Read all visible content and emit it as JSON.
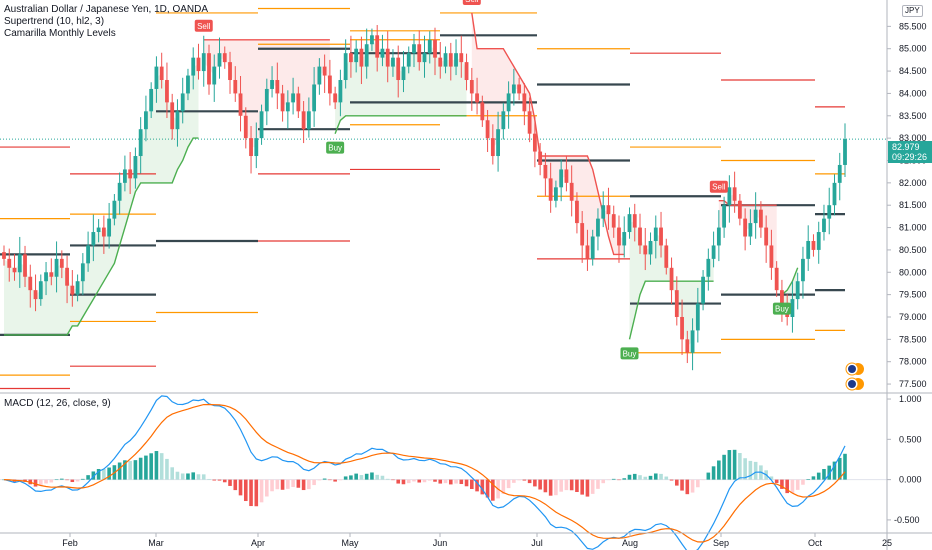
{
  "legend": {
    "title": "Australian Dollar / Japanese Yen, 1D, OANDA",
    "indicator1": "Supertrend (10, hl2, 3)",
    "indicator2": "Camarilla Monthly Levels",
    "macd": "MACD (12, 26, close, 9)"
  },
  "price_label": {
    "value": "82.979",
    "time": "09:29:26",
    "color": "#26a69a"
  },
  "currency": "JPY",
  "colors": {
    "up": "#26a69a",
    "down": "#ef5350",
    "st_up": "#4caf50",
    "st_down": "#ef5350",
    "level_dark": "#37474f",
    "level_orange": "#ff9800",
    "level_red": "#e53935",
    "macd_line": "#2196f3",
    "signal_line": "#ff6d00"
  },
  "chart_data": [
    {
      "type": "candlestick",
      "title": "Australian Dollar / Japanese Yen, 1D, OANDA",
      "xlabel": "",
      "ylabel": "",
      "x_ticks": [
        "Feb",
        "Mar",
        "Apr",
        "May",
        "Jun",
        "Jul",
        "Aug",
        "Sep",
        "Oct",
        "25"
      ],
      "y_ticks": [
        77.5,
        78.0,
        78.5,
        79.0,
        79.5,
        80.0,
        80.5,
        81.0,
        81.5,
        82.0,
        82.5,
        83.0,
        83.5,
        84.0,
        84.5,
        85.0,
        85.5
      ],
      "ylim": [
        77.3,
        86.0
      ],
      "close_path": [
        80.3,
        80.1,
        80.0,
        80.4,
        79.9,
        79.6,
        79.4,
        79.8,
        80.0,
        79.9,
        80.3,
        80.1,
        79.7,
        79.5,
        79.8,
        80.2,
        80.6,
        80.9,
        81.0,
        80.8,
        81.2,
        81.6,
        82.0,
        82.3,
        82.1,
        82.6,
        83.2,
        83.6,
        84.1,
        84.6,
        84.3,
        83.8,
        83.2,
        83.6,
        84.0,
        84.4,
        84.8,
        84.5,
        84.9,
        84.2,
        84.6,
        84.9,
        84.7,
        84.3,
        84.0,
        83.5,
        83.0,
        82.6,
        83.0,
        83.6,
        84.1,
        84.3,
        84.0,
        83.6,
        83.8,
        84.0,
        83.6,
        83.2,
        83.6,
        84.2,
        84.6,
        84.4,
        84.0,
        83.8,
        84.3,
        84.9,
        84.7,
        85.0,
        84.6,
        85.1,
        85.3,
        84.8,
        85.0,
        84.6,
        84.8,
        84.3,
        84.6,
        84.9,
        85.1,
        84.7,
        84.9,
        85.2,
        84.8,
        84.6,
        84.9,
        84.6,
        84.9,
        84.7,
        84.3,
        84.0,
        83.8,
        83.4,
        83.0,
        82.6,
        83.2,
        83.6,
        84.0,
        84.2,
        84.0,
        83.6,
        83.1,
        82.7,
        82.4,
        82.1,
        81.6,
        81.9,
        82.3,
        82.0,
        81.6,
        81.1,
        80.6,
        80.3,
        80.8,
        81.2,
        81.5,
        81.3,
        81.0,
        80.6,
        80.9,
        81.3,
        81.0,
        80.6,
        80.4,
        80.7,
        81.0,
        80.6,
        80.1,
        79.6,
        79.0,
        78.5,
        78.2,
        78.7,
        79.3,
        79.9,
        80.3,
        80.6,
        81.0,
        81.5,
        81.9,
        81.6,
        81.2,
        80.8,
        81.1,
        81.4,
        81.0,
        80.6,
        80.1,
        79.6,
        79.2,
        79.0,
        79.4,
        79.8,
        80.3,
        80.7,
        80.5,
        80.9,
        81.2,
        81.5,
        82.0,
        82.4,
        82.979
      ],
      "supertrend": [
        {
          "trend": "up",
          "values": [
            78.6,
            78.6,
            78.6,
            78.6,
            78.6,
            78.6,
            78.6,
            78.6,
            78.6,
            78.6,
            78.6,
            78.6,
            78.6,
            78.8,
            78.8,
            79.0,
            79.2,
            79.4,
            79.6,
            79.8,
            80.0,
            80.2,
            80.6,
            81.0,
            81.4,
            81.8,
            82.0,
            82.0,
            82.0,
            82.0,
            82.0,
            82.0,
            82.0,
            82.3,
            82.5,
            82.8,
            83.0,
            83.0
          ]
        },
        {
          "trend": "down",
          "values": [
            85.2,
            85.2,
            85.2,
            85.2,
            85.2,
            85.2,
            85.2,
            85.2,
            85.2,
            85.2,
            85.2,
            85.2,
            85.2,
            85.2,
            85.2,
            85.2,
            85.2,
            85.2,
            85.2,
            85.2,
            85.2,
            85.2,
            85.2,
            85.2,
            85.2
          ]
        },
        {
          "trend": "up",
          "values": [
            83.1,
            83.4,
            83.5,
            83.5,
            83.5,
            83.5,
            83.5,
            83.5,
            83.5,
            83.5,
            83.5,
            83.5,
            83.5,
            83.5,
            83.5,
            83.5,
            83.5,
            83.5,
            83.5,
            83.5,
            83.5,
            83.5,
            83.5,
            83.5,
            83.5,
            83.5
          ]
        },
        {
          "trend": "down",
          "values": [
            85.8,
            85.0,
            85.0,
            85.0,
            85.0,
            85.0,
            85.0,
            84.8,
            84.6,
            84.4,
            84.2,
            84.0,
            83.4,
            82.6,
            82.6,
            82.6,
            82.6,
            82.6,
            82.6,
            82.6,
            82.6,
            82.6,
            82.6,
            82.3,
            81.8,
            81.3,
            80.8,
            80.4,
            80.4,
            80.4
          ]
        },
        {
          "trend": "up",
          "values": [
            78.5,
            79.0,
            79.5,
            79.8,
            79.8,
            79.8,
            79.8,
            79.8,
            79.8,
            79.8,
            79.8,
            79.8,
            79.8,
            79.8,
            79.8,
            79.8,
            79.8
          ]
        },
        {
          "trend": "down",
          "values": [
            81.6,
            81.6,
            81.5,
            81.5,
            81.5,
            81.5,
            81.5,
            81.5,
            81.5,
            81.5,
            81.5,
            81.5
          ]
        },
        {
          "trend": "up",
          "values": [
            79.5,
            79.6,
            79.8,
            80.1
          ]
        }
      ],
      "signals": [
        {
          "label": "Sell",
          "kind": "sell"
        },
        {
          "label": "Buy",
          "kind": "buy"
        },
        {
          "label": "Sell",
          "kind": "sell"
        },
        {
          "label": "Buy",
          "kind": "buy"
        },
        {
          "label": "Sell",
          "kind": "sell"
        },
        {
          "label": "Buy",
          "kind": "buy"
        }
      ],
      "camarilla_months": [
        {
          "month": "Jan",
          "levels": [
            {
              "v": 82.8,
              "c": "red"
            },
            {
              "v": 81.2,
              "c": "orange"
            },
            {
              "v": 80.4,
              "c": "dark"
            },
            {
              "v": 78.6,
              "c": "dark"
            },
            {
              "v": 77.7,
              "c": "orange"
            },
            {
              "v": 77.4,
              "c": "red"
            }
          ]
        },
        {
          "month": "Feb",
          "levels": [
            {
              "v": 82.2,
              "c": "red"
            },
            {
              "v": 81.3,
              "c": "orange"
            },
            {
              "v": 80.6,
              "c": "dark"
            },
            {
              "v": 79.5,
              "c": "dark"
            },
            {
              "v": 78.9,
              "c": "orange"
            },
            {
              "v": 77.9,
              "c": "red"
            }
          ]
        },
        {
          "month": "Mar",
          "levels": [
            {
              "v": 85.8,
              "c": "orange"
            },
            {
              "v": 83.6,
              "c": "dark"
            },
            {
              "v": 80.7,
              "c": "dark"
            },
            {
              "v": 79.1,
              "c": "orange"
            }
          ]
        },
        {
          "month": "Apr",
          "levels": [
            {
              "v": 85.9,
              "c": "orange"
            },
            {
              "v": 85.1,
              "c": "orange"
            },
            {
              "v": 85.0,
              "c": "dark"
            },
            {
              "v": 83.2,
              "c": "dark"
            },
            {
              "v": 82.2,
              "c": "red"
            },
            {
              "v": 80.7,
              "c": "red"
            }
          ]
        },
        {
          "month": "May",
          "levels": [
            {
              "v": 85.4,
              "c": "orange"
            },
            {
              "v": 85.2,
              "c": "orange"
            },
            {
              "v": 84.9,
              "c": "dark"
            },
            {
              "v": 83.8,
              "c": "dark"
            },
            {
              "v": 83.3,
              "c": "orange"
            },
            {
              "v": 82.3,
              "c": "red"
            }
          ]
        },
        {
          "month": "Jun",
          "levels": [
            {
              "v": 85.8,
              "c": "orange"
            },
            {
              "v": 85.3,
              "c": "dark"
            },
            {
              "v": 83.8,
              "c": "dark"
            },
            {
              "v": 83.5,
              "c": "orange"
            }
          ]
        },
        {
          "month": "Jul",
          "levels": [
            {
              "v": 85.0,
              "c": "orange"
            },
            {
              "v": 84.2,
              "c": "dark"
            },
            {
              "v": 82.5,
              "c": "dark"
            },
            {
              "v": 81.7,
              "c": "orange"
            },
            {
              "v": 80.3,
              "c": "red"
            }
          ]
        },
        {
          "month": "Aug",
          "levels": [
            {
              "v": 84.9,
              "c": "red"
            },
            {
              "v": 82.8,
              "c": "orange"
            },
            {
              "v": 81.7,
              "c": "dark"
            },
            {
              "v": 79.3,
              "c": "dark"
            },
            {
              "v": 78.2,
              "c": "orange"
            }
          ]
        },
        {
          "month": "Sep",
          "levels": [
            {
              "v": 84.3,
              "c": "red"
            },
            {
              "v": 82.5,
              "c": "orange"
            },
            {
              "v": 81.5,
              "c": "dark"
            },
            {
              "v": 79.5,
              "c": "dark"
            },
            {
              "v": 78.5,
              "c": "orange"
            }
          ]
        },
        {
          "month": "Oct",
          "levels": [
            {
              "v": 83.7,
              "c": "red"
            },
            {
              "v": 82.2,
              "c": "orange"
            },
            {
              "v": 81.3,
              "c": "dark"
            },
            {
              "v": 79.6,
              "c": "dark"
            },
            {
              "v": 78.7,
              "c": "orange"
            }
          ]
        }
      ]
    },
    {
      "type": "macd",
      "title": "MACD (12, 26, close, 9)",
      "y_ticks": [
        -0.5,
        0.0,
        0.5,
        1.0
      ],
      "ylim": [
        -0.65,
        1.05
      ]
    }
  ]
}
